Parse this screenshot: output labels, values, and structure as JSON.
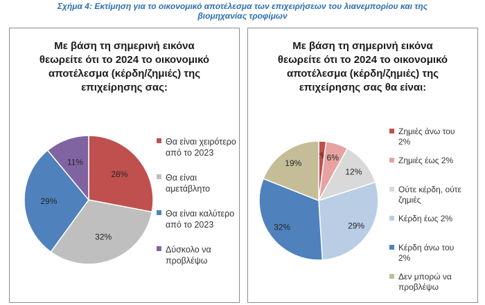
{
  "figure_title_lines": [
    "Σχήμα 4: Εκτίμηση για το οικονομικό αποτέλεσμα των επιχειρήσεων του λιανεμπορίου και της",
    "βιομηχανίας τροφίμων"
  ],
  "chart_data": [
    {
      "type": "pie",
      "title_lines": [
        "Με βάση τη σημερινή εικόνα",
        "θεωρείτε ότι το 2024 το οικονομικό",
        "αποτέλεσμα (κέρδη/ζημιές) της",
        "επιχείρησης σας:"
      ],
      "slices": [
        {
          "label_lines": [
            "Θα είναι χειρότερο",
            "από το 2023"
          ],
          "value": 28,
          "label": "28%",
          "color": "#c0504d"
        },
        {
          "label_lines": [
            "Θα είναι",
            "αμετάβλητο"
          ],
          "value": 32,
          "label": "32%",
          "color": "#bfbfbf"
        },
        {
          "label_lines": [
            "Θα είναι καλύτερο",
            "από το 2023"
          ],
          "value": 29,
          "label": "29%",
          "color": "#4f81bd"
        },
        {
          "label_lines": [
            "Δύσκολο να",
            "προβλέψω"
          ],
          "value": 11,
          "label": "11%",
          "color": "#8064a2"
        }
      ],
      "legend_position": "right"
    },
    {
      "type": "pie",
      "title_lines": [
        "Με βάση τη σημερινή εικόνα",
        "θεωρείτε ότι το 2024 το οικονομικό",
        "αποτέλεσμα (κέρδη/ζημιές) της",
        "επιχείρησης σας θα είναι:"
      ],
      "slices": [
        {
          "label_lines": [
            "Ζημιές άνω του",
            "2%"
          ],
          "value": 2,
          "label": "2%",
          "color": "#c0504d"
        },
        {
          "label_lines": [
            "Ζημιές έως 2%"
          ],
          "value": 6,
          "label": "6%",
          "color": "#e6a3a1"
        },
        {
          "label_lines": [
            "Ούτε κέρδη, ούτε",
            "ζημιές"
          ],
          "value": 12,
          "label": "12%",
          "color": "#d9d9d9"
        },
        {
          "label_lines": [
            "Κέρδη έως 2%"
          ],
          "value": 29,
          "label": "29%",
          "color": "#b9cde5"
        },
        {
          "label_lines": [
            "Κέρδη άνω του",
            "2%"
          ],
          "value": 32,
          "label": "32%",
          "color": "#4f81bd"
        },
        {
          "label_lines": [
            "Δεν μπορώ να",
            "προβλέψω"
          ],
          "value": 19,
          "label": "19%",
          "color": "#c4bd97"
        }
      ],
      "legend_position": "right"
    }
  ]
}
